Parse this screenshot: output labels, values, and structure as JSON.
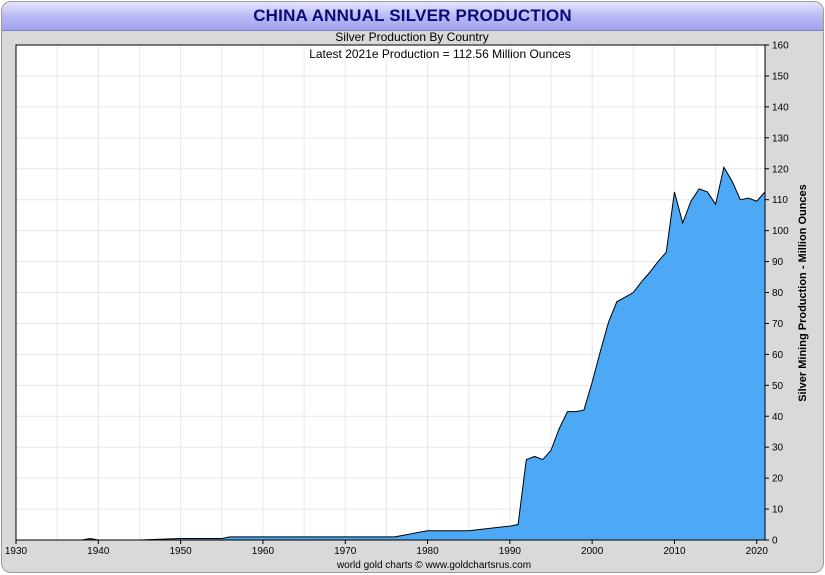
{
  "chart_data": {
    "type": "area",
    "title": "CHINA ANNUAL SILVER PRODUCTION",
    "subtitle": "Silver Production By Country",
    "annotation": "Latest 2021e Production = 112.56 Million Ounces",
    "ylabel": "Silver Mining Production - Million Ounces",
    "footer": "world gold charts © www.goldchartsrus.com",
    "xlim": [
      1930,
      2021
    ],
    "ylim": [
      0,
      160
    ],
    "x_ticks": [
      1930,
      1940,
      1950,
      1960,
      1970,
      1980,
      1990,
      2000,
      2010,
      2020
    ],
    "y_ticks": [
      0,
      10,
      20,
      30,
      40,
      50,
      60,
      70,
      80,
      90,
      100,
      110,
      120,
      130,
      140,
      150,
      160
    ],
    "y_axis_side": "right",
    "grid": true,
    "colors": {
      "fill": "#4da8f5",
      "line": "#000000",
      "grid": "#e6e6f2"
    },
    "series": [
      {
        "x": [
          1930,
          1938,
          1939,
          1940,
          1945,
          1950,
          1955,
          1956,
          1960,
          1965,
          1970,
          1975,
          1976,
          1977,
          1978,
          1979,
          1980,
          1985,
          1990,
          1991,
          1992,
          1993,
          1994,
          1995,
          1996,
          1997,
          1998,
          1999,
          2000,
          2001,
          2002,
          2003,
          2004,
          2005,
          2006,
          2007,
          2008,
          2009,
          2010,
          2011,
          2012,
          2013,
          2014,
          2015,
          2016,
          2017,
          2018,
          2019,
          2020,
          2021
        ],
        "values": [
          0,
          0,
          0.5,
          0,
          0,
          0.5,
          0.5,
          1,
          1,
          1,
          1,
          1,
          1,
          1.5,
          2,
          2.5,
          3,
          3,
          4.5,
          5,
          26,
          27,
          26,
          29,
          36,
          41.5,
          41.5,
          42,
          51,
          61,
          70.5,
          77,
          78.5,
          80,
          83.5,
          86.5,
          90,
          93,
          112.5,
          102.5,
          109.5,
          113.5,
          112.5,
          108.5,
          120.5,
          116,
          110,
          110.5,
          109.5,
          112.56
        ]
      }
    ]
  }
}
